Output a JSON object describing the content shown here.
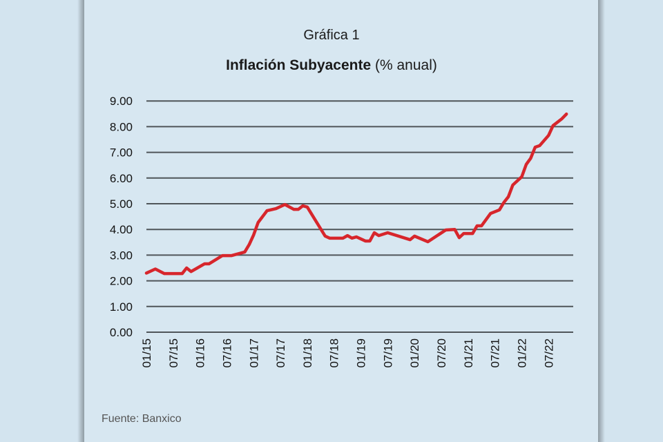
{
  "chart_data": {
    "type": "line",
    "title": "Gráfica 1",
    "subtitle_bold": "Inflación Subyacente",
    "subtitle_rest": " (% anual)",
    "source": "Fuente: Banxico",
    "ylim": [
      0,
      9
    ],
    "yticks": [
      "0.00",
      "1.00",
      "2.00",
      "3.00",
      "4.00",
      "5.00",
      "6.00",
      "7.00",
      "8.00",
      "9.00"
    ],
    "xticks": [
      "01/15",
      "07/15",
      "01/16",
      "07/16",
      "01/17",
      "07/17",
      "01/18",
      "07/18",
      "01/19",
      "07/19",
      "01/20",
      "07/20",
      "01/21",
      "07/21",
      "01/22",
      "07/22"
    ],
    "grid": true,
    "line_color": "#d7262c",
    "x": [
      "2015-01",
      "2015-03",
      "2015-05",
      "2015-09",
      "2015-10",
      "2015-11",
      "2016-02",
      "2016-03",
      "2016-06",
      "2016-08",
      "2016-11",
      "2016-12",
      "2017-01",
      "2017-02",
      "2017-04",
      "2017-06",
      "2017-08",
      "2017-10",
      "2017-11",
      "2017-12",
      "2018-01",
      "2018-05",
      "2018-06",
      "2018-09",
      "2018-10",
      "2018-11",
      "2018-12",
      "2019-02",
      "2019-03",
      "2019-04",
      "2019-05",
      "2019-07",
      "2019-12",
      "2020-01",
      "2020-04",
      "2020-08",
      "2020-10",
      "2020-11",
      "2020-12",
      "2021-02",
      "2021-03",
      "2021-04",
      "2021-06",
      "2021-08",
      "2021-09",
      "2021-10",
      "2021-11",
      "2022-01",
      "2022-02",
      "2022-03",
      "2022-04",
      "2022-05",
      "2022-07",
      "2022-08",
      "2022-10",
      "2022-11"
    ],
    "values": [
      2.3,
      2.46,
      2.28,
      2.28,
      2.5,
      2.36,
      2.66,
      2.66,
      2.98,
      2.98,
      3.12,
      3.41,
      3.79,
      4.27,
      4.73,
      4.81,
      4.97,
      4.78,
      4.78,
      4.92,
      4.87,
      3.74,
      3.66,
      3.66,
      3.76,
      3.66,
      3.71,
      3.55,
      3.55,
      3.87,
      3.76,
      3.87,
      3.6,
      3.74,
      3.52,
      3.98,
      4.0,
      3.68,
      3.84,
      3.84,
      4.14,
      4.14,
      4.62,
      4.76,
      5.05,
      5.27,
      5.73,
      6.05,
      6.53,
      6.77,
      7.2,
      7.26,
      7.66,
      8.04,
      8.31,
      8.49
    ]
  }
}
